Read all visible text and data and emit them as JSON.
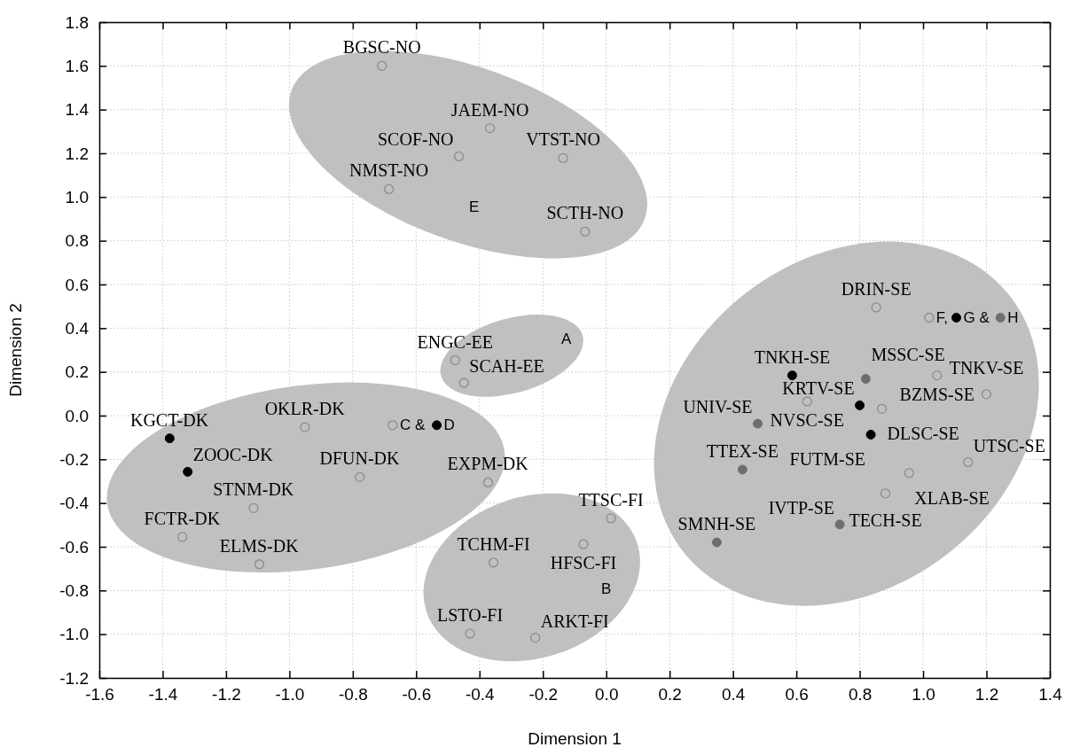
{
  "chart_data": {
    "type": "scatter",
    "xlabel": "Dimension 1",
    "ylabel": "Dimension 2",
    "xlim": [
      -1.6,
      1.4
    ],
    "ylim": [
      -1.2,
      1.8
    ],
    "xticks": [
      -1.6,
      -1.4,
      -1.2,
      {
        "value": -1.0,
        "label": "-1.0"
      },
      -0.8,
      -0.6,
      -0.4,
      -0.2,
      {
        "value": 0,
        "label": "0.0"
      },
      0.2,
      0.4,
      0.6,
      0.8,
      {
        "value": 1.0,
        "label": "1.0"
      },
      1.2,
      1.4
    ],
    "yticks": [
      {
        "value": -1.2,
        "label": "-1.2"
      },
      {
        "value": -1.0,
        "label": "-1.0"
      },
      -0.8,
      -0.6,
      -0.4,
      -0.2,
      {
        "value": 0,
        "label": "0.0"
      },
      0.2,
      0.4,
      0.6,
      0.8,
      {
        "value": 1.0,
        "label": "1.0"
      },
      1.2,
      1.4,
      1.6,
      1.8
    ],
    "grid": true,
    "marker": "circle",
    "series": [
      {
        "color": "#8c8c8c",
        "x": [
          -0.708,
          -0.367,
          -0.465,
          -0.136,
          -0.686,
          -0.067,
          -0.477,
          -0.449,
          -0.951,
          -0.674,
          -0.778,
          -0.373,
          -1.113,
          -1.338,
          -1.095,
          0.015,
          -0.356,
          -0.072,
          -0.43,
          -0.224,
          0.852,
          1.019,
          1.044,
          0.634,
          0.87,
          1.2,
          1.142,
          0.956,
          0.881
        ],
        "values": [
          1.6,
          1.315,
          1.186,
          1.178,
          1.036,
          0.842,
          0.253,
          0.15,
          -0.053,
          -0.044,
          -0.281,
          -0.306,
          -0.423,
          -0.555,
          -0.68,
          -0.47,
          -0.672,
          -0.588,
          -0.997,
          -1.016,
          0.495,
          0.448,
          0.184,
          0.065,
          0.031,
          0.098,
          -0.213,
          -0.263,
          -0.356
        ]
      },
      {
        "color": "#000000",
        "x": [
          -1.378,
          -1.321,
          -0.535,
          1.105,
          0.587,
          0.8,
          0.835
        ],
        "values": [
          -0.104,
          -0.257,
          -0.044,
          0.448,
          0.184,
          0.047,
          -0.087
        ]
      },
      {
        "color": "#6e6e6e",
        "x": [
          1.244,
          0.819,
          0.478,
          0.43,
          0.737,
          0.349
        ],
        "values": [
          0.448,
          0.168,
          -0.037,
          -0.247,
          -0.498,
          -0.58
        ]
      }
    ],
    "annotations": [
      {
        "text": "BGSC-NO",
        "x": -0.708,
        "y": 1.6
      },
      {
        "text": "JAEM-NO",
        "x": -0.367,
        "y": 1.315
      },
      {
        "text": "SCOF-NO",
        "x": -0.465,
        "y": 1.186
      },
      {
        "text": "VTST-NO",
        "x": -0.136,
        "y": 1.178
      },
      {
        "text": "NMST-NO",
        "x": -0.686,
        "y": 1.036
      },
      {
        "text": "SCTH-NO",
        "x": -0.067,
        "y": 0.842
      },
      "E",
      {
        "text": "ENGC-EE",
        "x": -0.477,
        "y": 0.253
      },
      {
        "text": "SCAH-EE",
        "x": -0.449,
        "y": 0.15
      },
      "A",
      {
        "text": "KGCT-DK",
        "x": -1.378,
        "y": -0.104
      },
      {
        "text": "ZOOC-DK",
        "x": -1.321,
        "y": -0.257
      },
      {
        "text": "OKLR-DK",
        "x": -0.951,
        "y": -0.053
      },
      {
        "text": "C &",
        "x": -0.674,
        "y": -0.044
      },
      {
        "text": "D",
        "x": -0.535,
        "y": -0.044
      },
      {
        "text": "DFUN-DK",
        "x": -0.778,
        "y": -0.281
      },
      {
        "text": "EXPM-DK",
        "x": -0.373,
        "y": -0.306
      },
      {
        "text": "STNM-DK",
        "x": -1.113,
        "y": -0.423
      },
      {
        "text": "FCTR-DK",
        "x": -1.338,
        "y": -0.555
      },
      {
        "text": "ELMS-DK",
        "x": -1.095,
        "y": -0.68
      },
      {
        "text": "TTSC-FI",
        "x": 0.015,
        "y": -0.47
      },
      {
        "text": "TCHM-FI",
        "x": -0.356,
        "y": -0.672
      },
      {
        "text": "HFSC-FI",
        "x": -0.072,
        "y": -0.588
      },
      "B",
      {
        "text": "LSTO-FI",
        "x": -0.43,
        "y": -0.997
      },
      {
        "text": "ARKT-FI",
        "x": -0.224,
        "y": -1.016
      },
      {
        "text": "DRIN-SE",
        "x": 0.852,
        "y": 0.495
      },
      {
        "text": "F,",
        "x": 1.019,
        "y": 0.448
      },
      {
        "text": "G &",
        "x": 1.105,
        "y": 0.448
      },
      {
        "text": "H",
        "x": 1.244,
        "y": 0.448
      },
      {
        "text": "TNKH-SE",
        "x": 0.587,
        "y": 0.184
      },
      {
        "text": "MSSC-SE",
        "x": 0.819,
        "y": 0.168
      },
      {
        "text": "BZMS-SE",
        "x": 1.044,
        "y": 0.184
      },
      {
        "text": "NVSC-SE",
        "x": 0.634,
        "y": 0.065
      },
      {
        "text": "DLSC-SE",
        "x": 0.87,
        "y": 0.031
      },
      {
        "text": "TNKV-SE",
        "x": 1.2,
        "y": 0.098
      },
      {
        "text": "UNIV-SE",
        "x": 0.478,
        "y": -0.037
      },
      {
        "text": "KRTV-SE",
        "x": 0.8,
        "y": 0.047
      },
      {
        "text": "FUTM-SE",
        "x": 0.835,
        "y": -0.087
      },
      {
        "text": "UTSC-SE",
        "x": 1.142,
        "y": -0.213
      },
      {
        "text": "TTEX-SE",
        "x": 0.43,
        "y": -0.247
      },
      {
        "text": "XLAB-SE",
        "x": 0.956,
        "y": -0.263
      },
      {
        "text": "TECH-SE",
        "x": 0.881,
        "y": -0.356
      },
      {
        "text": "IVTP-SE",
        "x": 0.737,
        "y": -0.498
      },
      {
        "text": "SMNH-SE",
        "x": 0.349,
        "y": -0.58
      }
    ]
  }
}
